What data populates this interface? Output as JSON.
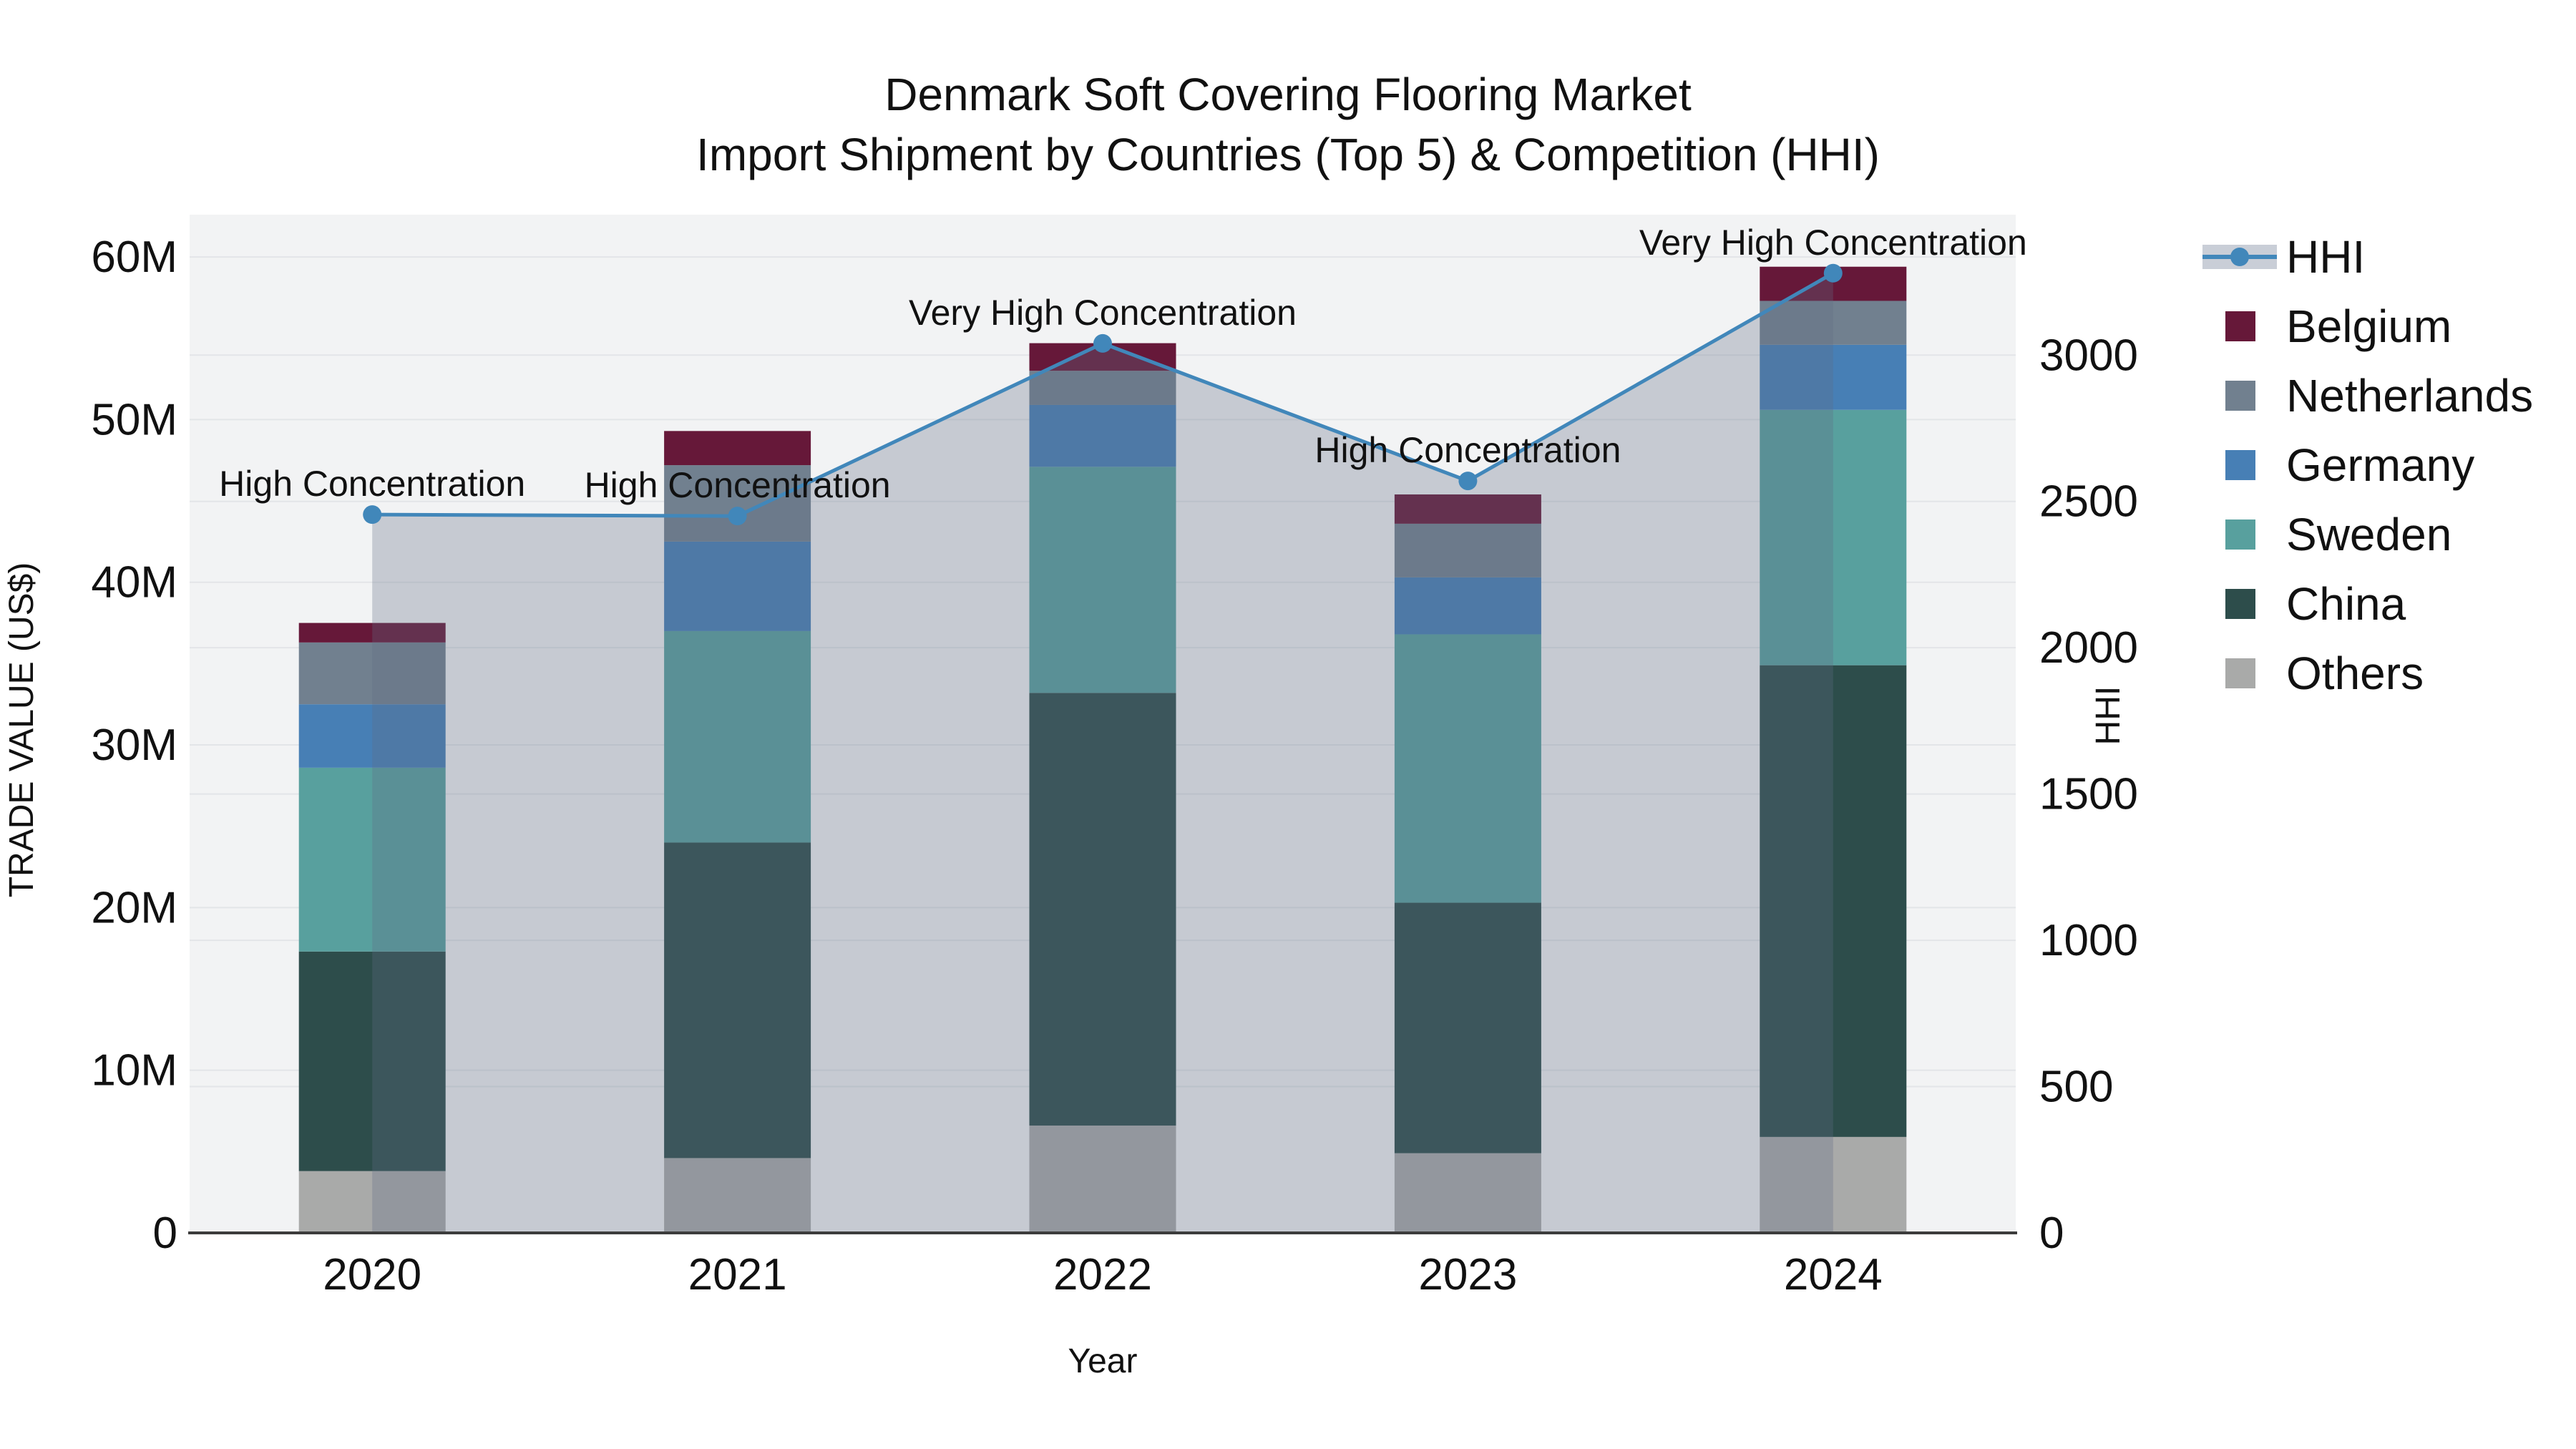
{
  "chart_data": {
    "type": "bar",
    "title_line1": "Denmark Soft Covering Flooring Market",
    "title_line2": "Import Shipment by Countries (Top 5) & Competition (HHI)",
    "xlabel": "Year",
    "ylabel": "TRADE VALUE (US$)",
    "y2label": "HHI",
    "categories": [
      "2020",
      "2021",
      "2022",
      "2023",
      "2024"
    ],
    "value_unit": "million US$",
    "series": [
      {
        "name": "Others",
        "color": "#a9aaa9",
        "values": [
          3.8,
          4.6,
          6.6,
          4.9,
          5.9
        ]
      },
      {
        "name": "China",
        "color": "#2d4d4b",
        "values": [
          13.5,
          19.4,
          26.6,
          15.4,
          29.0
        ]
      },
      {
        "name": "Sweden",
        "color": "#58a09e",
        "values": [
          11.3,
          13.0,
          13.9,
          16.5,
          15.7
        ]
      },
      {
        "name": "Germany",
        "color": "#477fb5",
        "values": [
          3.9,
          5.5,
          3.8,
          3.5,
          4.0
        ]
      },
      {
        "name": "Netherlands",
        "color": "#71808f",
        "values": [
          3.8,
          4.7,
          2.1,
          3.3,
          2.7
        ]
      },
      {
        "name": "Belgium",
        "color": "#661839",
        "values": [
          1.2,
          2.1,
          1.7,
          1.8,
          2.1
        ]
      }
    ],
    "stack_totals": [
      37.5,
      49.3,
      54.7,
      45.4,
      59.4
    ],
    "line_series": {
      "name": "HHI",
      "color": "#4187ba",
      "area_fill": "rgba(96,109,133,0.30)",
      "legend_band_color": "#c9ced7",
      "values": [
        2455,
        2450,
        3040,
        2570,
        3280
      ]
    },
    "annotations": [
      "High Concentration",
      "High Concentration",
      "Very High Concentration",
      "High Concentration",
      "Very High Concentration"
    ],
    "y_axis": {
      "ticks": [
        "0",
        "10M",
        "20M",
        "30M",
        "40M",
        "50M",
        "60M"
      ],
      "tick_values": [
        0,
        10,
        20,
        30,
        40,
        50,
        60
      ],
      "max": 62.6
    },
    "y2_axis": {
      "ticks": [
        "0",
        "500",
        "1000",
        "1500",
        "2000",
        "2500",
        "3000"
      ],
      "tick_values": [
        0,
        500,
        1000,
        1500,
        2000,
        2500,
        3000
      ],
      "max": 3480
    },
    "legend_order": [
      "HHI",
      "Belgium",
      "Netherlands",
      "Germany",
      "Sweden",
      "China",
      "Others"
    ],
    "plot_bg": "#f2f3f4",
    "gridline_color": "#e3e5e8",
    "axisline_color": "#3c3c3c",
    "grid_on": true,
    "legend_position": "right"
  }
}
